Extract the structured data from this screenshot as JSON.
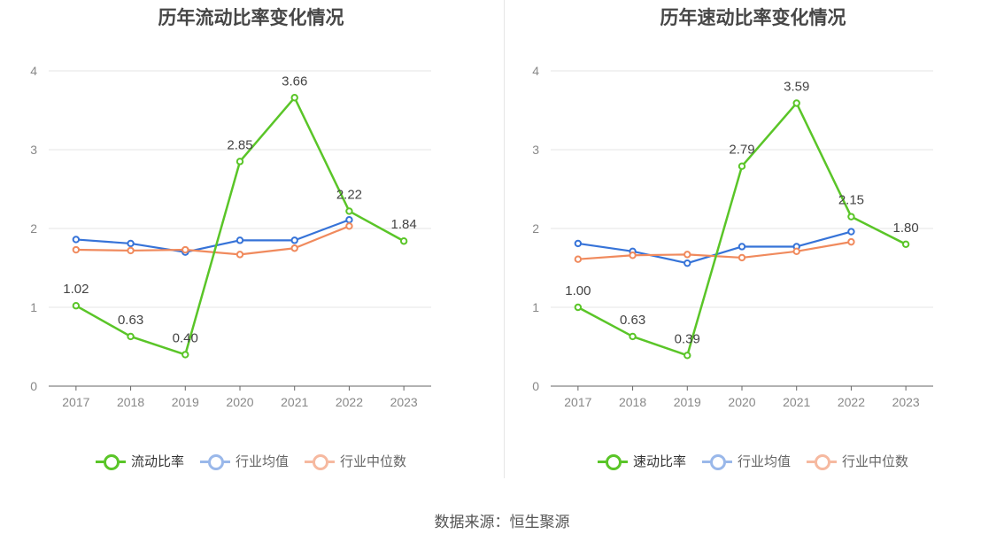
{
  "chart_data": [
    {
      "type": "line",
      "title": "历年流动比率变化情况",
      "categories": [
        "2017",
        "2018",
        "2019",
        "2020",
        "2021",
        "2022",
        "2023"
      ],
      "ylim": [
        0,
        4
      ],
      "yticks": [
        "0",
        "1",
        "2",
        "3",
        "4"
      ],
      "grid": true,
      "legend_position": "bottom",
      "series": [
        {
          "name": "流动比率",
          "color": "#5ac528",
          "values": [
            1.02,
            0.63,
            0.4,
            2.85,
            3.66,
            2.22,
            1.84
          ],
          "labels": [
            "1.02",
            "0.63",
            "0.40",
            "2.85",
            "3.66",
            "2.22",
            "1.84"
          ]
        },
        {
          "name": "行业均值",
          "color": "#3673d8",
          "values": [
            1.86,
            1.81,
            1.7,
            1.85,
            1.85,
            2.11,
            null
          ]
        },
        {
          "name": "行业中位数",
          "color": "#f08a5d",
          "values": [
            1.73,
            1.72,
            1.73,
            1.67,
            1.75,
            2.03,
            null
          ]
        }
      ]
    },
    {
      "type": "line",
      "title": "历年速动比率变化情况",
      "categories": [
        "2017",
        "2018",
        "2019",
        "2020",
        "2021",
        "2022",
        "2023"
      ],
      "ylim": [
        0,
        4
      ],
      "yticks": [
        "0",
        "1",
        "2",
        "3",
        "4"
      ],
      "grid": true,
      "legend_position": "bottom",
      "series": [
        {
          "name": "速动比率",
          "color": "#5ac528",
          "values": [
            1.0,
            0.63,
            0.39,
            2.79,
            3.59,
            2.15,
            1.8
          ],
          "labels": [
            "1.00",
            "0.63",
            "0.39",
            "2.79",
            "3.59",
            "2.15",
            "1.80"
          ]
        },
        {
          "name": "行业均值",
          "color": "#3673d8",
          "values": [
            1.81,
            1.71,
            1.56,
            1.77,
            1.77,
            1.96,
            null
          ]
        },
        {
          "name": "行业中位数",
          "color": "#f08a5d",
          "values": [
            1.61,
            1.66,
            1.67,
            1.63,
            1.71,
            1.83,
            null
          ]
        }
      ]
    }
  ],
  "footer": {
    "source": "数据来源：恒生聚源"
  }
}
